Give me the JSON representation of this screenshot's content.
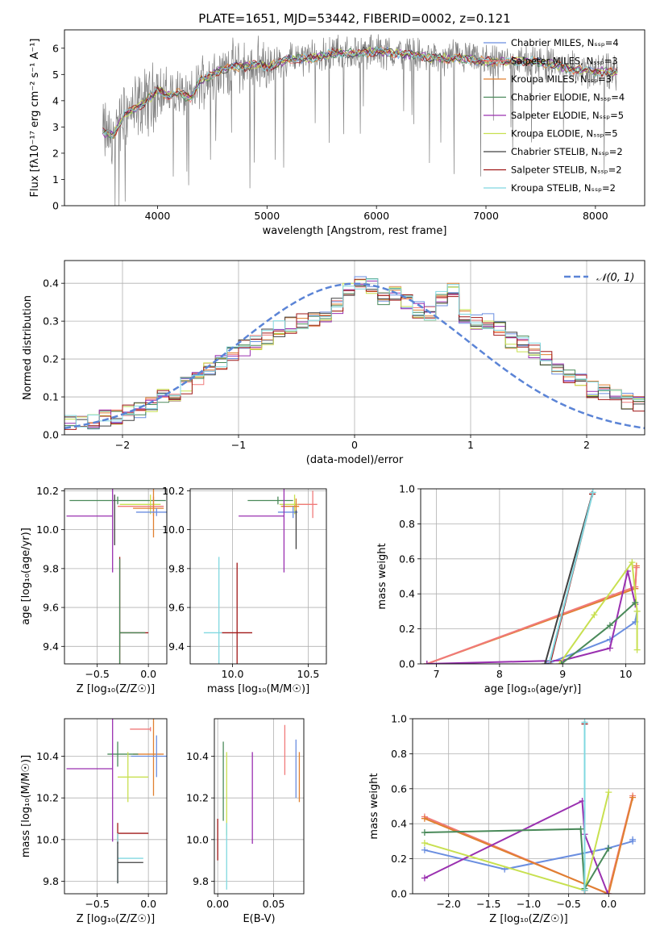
{
  "chart_data": [
    {
      "id": "spectrum",
      "type": "line",
      "title": "PLATE=1651, MJD=53442, FIBERID=0002, z=0.121",
      "xlabel": "wavelength [Angstrom, rest frame]",
      "ylabel": "Flux [fλ10⁻¹⁷ erg cm⁻² s⁻¹ A⁻¹]",
      "xlim": [
        3150,
        8450
      ],
      "ylim": [
        0,
        6.7
      ],
      "xticks": [
        4000,
        5000,
        6000,
        7000,
        8000
      ],
      "yticks": [
        0,
        1,
        2,
        3,
        4,
        5,
        6
      ],
      "grid": false,
      "legend_position": "top-right",
      "data_continuum": {
        "x": [
          3500,
          3600,
          3700,
          3800,
          3900,
          4000,
          4100,
          4200,
          4300,
          4400,
          4500,
          4600,
          4700,
          4800,
          4900,
          5000,
          5200,
          5400,
          5600,
          5800,
          6000,
          6200,
          6400,
          6600,
          6800,
          7000,
          7200,
          7400,
          7600,
          7800,
          8000,
          8200
        ],
        "y": [
          2.8,
          2.7,
          3.5,
          3.7,
          4.0,
          4.4,
          4.2,
          4.3,
          4.1,
          4.8,
          5.0,
          5.2,
          5.3,
          5.3,
          5.4,
          5.3,
          5.6,
          5.6,
          5.8,
          5.8,
          5.9,
          5.8,
          5.7,
          5.6,
          5.6,
          5.5,
          5.5,
          5.5,
          5.4,
          5.2,
          5.1,
          5.1
        ]
      },
      "models": [
        {
          "name": "Chabrier MILES, N$_{SSP}$=4",
          "color": "#6a8ee0"
        },
        {
          "name": "Salpeter MILES, N$_{SSP}$=3",
          "color": "#f07a7a"
        },
        {
          "name": "Kroupa MILES, N$_{SSP}$=3",
          "color": "#e08030"
        },
        {
          "name": "Chabrier ELODIE, N$_{SSP}$=4",
          "color": "#4a8a5a"
        },
        {
          "name": "Salpeter ELODIE, N$_{SSP}$=5",
          "color": "#9a30b0"
        },
        {
          "name": "Kroupa ELODIE, N$_{SSP}$=5",
          "color": "#c8e050"
        },
        {
          "name": "Chabrier STELIB, N$_{SSP}$=2",
          "color": "#404040"
        },
        {
          "name": "Salpeter STELIB, N$_{SSP}$=2",
          "color": "#a01818"
        },
        {
          "name": "Kroupa STELIB, N$_{SSP}$=2",
          "color": "#80d8e0"
        }
      ]
    },
    {
      "id": "residuals",
      "type": "histogram",
      "xlabel": "(data-model)/error",
      "ylabel": "Normed distribution",
      "xlim": [
        -2.5,
        2.5
      ],
      "ylim": [
        0,
        0.46
      ],
      "xticks": [
        -2,
        -1,
        0,
        1,
        2
      ],
      "yticks": [
        0.0,
        0.1,
        0.2,
        0.3,
        0.4
      ],
      "grid": true,
      "legend": [
        "𝒩(0, 1)"
      ],
      "legend_position": "top-right",
      "gaussian": {
        "mu": 0,
        "sigma": 1,
        "color": "#5b84d6"
      },
      "bin_edges_start": -2.5,
      "bin_width": 0.1,
      "base_heights": [
        0.03,
        0.035,
        0.035,
        0.045,
        0.05,
        0.06,
        0.065,
        0.08,
        0.1,
        0.11,
        0.13,
        0.15,
        0.17,
        0.19,
        0.21,
        0.23,
        0.24,
        0.26,
        0.28,
        0.29,
        0.3,
        0.3,
        0.32,
        0.34,
        0.38,
        0.4,
        0.39,
        0.36,
        0.37,
        0.35,
        0.33,
        0.32,
        0.36,
        0.38,
        0.31,
        0.3,
        0.3,
        0.28,
        0.25,
        0.24,
        0.22,
        0.2,
        0.17,
        0.15,
        0.14,
        0.12,
        0.11,
        0.1,
        0.09,
        0.08,
        0.07,
        0.06,
        0.05,
        0.04
      ],
      "series_colors": [
        "#6a8ee0",
        "#f07a7a",
        "#e08030",
        "#4a8a5a",
        "#9a30b0",
        "#c8e050",
        "#404040",
        "#a01818",
        "#80d8e0"
      ]
    },
    {
      "id": "age-vs-Z",
      "type": "errorbar",
      "xlabel": "Z [log₁₀(Z/Z☉)]",
      "ylabel": "age  [log₁₀(age/yr)]",
      "xlim": [
        -0.82,
        0.18
      ],
      "ylim": [
        9.31,
        10.21
      ],
      "xticks": [
        -0.5,
        0.0
      ],
      "yticks": [
        9.4,
        9.6,
        9.8,
        10.0,
        10.2
      ],
      "grid": true,
      "points": [
        {
          "x": -0.3,
          "y": 10.15,
          "xerr": [
            0.47,
            0.47
          ],
          "yerr": 0.02,
          "color": "#4a8a5a"
        },
        {
          "x": 0.02,
          "y": 10.13,
          "xerr": [
            0.3,
            0.1
          ],
          "yerr": 0.05,
          "color": "#c8e050"
        },
        {
          "x": 0.05,
          "y": 10.12,
          "xerr": [
            0.35,
            0.1
          ],
          "yerr": 0.05,
          "color": "#f07a7a"
        },
        {
          "x": 0.05,
          "y": 10.11,
          "xerr": [
            0.2,
            0.1
          ],
          "yerr": 0.15,
          "color": "#e08030"
        },
        {
          "x": 0.08,
          "y": 10.09,
          "xerr": [
            0.2,
            0.1
          ],
          "yerr": 0.02,
          "color": "#6a8ee0"
        },
        {
          "x": -0.35,
          "y": 10.07,
          "xerr": [
            0.45,
            0.0
          ],
          "yerr": 0.29,
          "color": "#9a30b0"
        },
        {
          "x": -0.33,
          "y": 10.05,
          "xerr": [
            0.0,
            0.0
          ],
          "yerr": 0.13,
          "color": "#404040"
        },
        {
          "x": -0.28,
          "y": 9.47,
          "xerr": [
            0.0,
            0.28
          ],
          "yerr": 0.39,
          "color": "#a01818"
        },
        {
          "x": -0.28,
          "y": 9.47,
          "xerr": [
            0.0,
            0.25
          ],
          "yerr": 0.38,
          "color": "#4a8a5a"
        }
      ]
    },
    {
      "id": "age-vs-mass",
      "type": "errorbar",
      "xlabel": "mass [log₁₀(M/M☉)]",
      "ylabel": "",
      "xlim": [
        9.72,
        10.62
      ],
      "ylim": [
        9.31,
        10.21
      ],
      "xticks": [
        10.0,
        10.5
      ],
      "yticks": [
        9.4,
        9.6,
        9.8,
        10.0,
        10.2
      ],
      "grid": true,
      "points": [
        {
          "x": 10.3,
          "y": 10.15,
          "xerr": [
            0.2,
            0.1
          ],
          "yerr": 0.02,
          "color": "#4a8a5a"
        },
        {
          "x": 10.41,
          "y": 10.13,
          "xerr": [
            0.1,
            0.1
          ],
          "yerr": 0.05,
          "color": "#c8e050"
        },
        {
          "x": 10.53,
          "y": 10.13,
          "xerr": [
            0.1,
            0.03
          ],
          "yerr": 0.07,
          "color": "#f07a7a"
        },
        {
          "x": 10.42,
          "y": 10.12,
          "xerr": [
            0.1,
            0.02
          ],
          "yerr": 0.04,
          "color": "#e08030"
        },
        {
          "x": 10.4,
          "y": 10.09,
          "xerr": [
            0.1,
            0.03
          ],
          "yerr": 0.03,
          "color": "#6a8ee0"
        },
        {
          "x": 10.34,
          "y": 10.07,
          "xerr": [
            0.3,
            0.0
          ],
          "yerr": 0.29,
          "color": "#9a30b0"
        },
        {
          "x": 10.42,
          "y": 10.0,
          "xerr": [
            0.0,
            0.0
          ],
          "yerr": 0.1,
          "color": "#404040"
        },
        {
          "x": 10.03,
          "y": 9.47,
          "xerr": [
            0.1,
            0.1
          ],
          "yerr": 0.36,
          "color": "#a01818"
        },
        {
          "x": 9.91,
          "y": 9.47,
          "xerr": [
            0.1,
            0.02
          ],
          "yerr": 0.39,
          "color": "#80d8e0"
        }
      ]
    },
    {
      "id": "weight-vs-age",
      "type": "line",
      "xlabel": "age  [log₁₀(age/yr)]",
      "ylabel": "mass weight",
      "xlim": [
        6.75,
        10.3
      ],
      "ylim": [
        0,
        1
      ],
      "xticks": [
        7,
        8,
        9,
        10
      ],
      "yticks": [
        0.0,
        0.2,
        0.4,
        0.6,
        0.8,
        1.0
      ],
      "grid": true,
      "series": [
        {
          "color": "#6a8ee0",
          "x": [
            8.75,
            9.75,
            10.15,
            10.18
          ],
          "y": [
            0.0,
            0.14,
            0.24,
            0.3
          ]
        },
        {
          "color": "#e08030",
          "x": [
            6.85,
            10.15,
            10.17
          ],
          "y": [
            0.0,
            0.43,
            0.56
          ]
        },
        {
          "color": "#f07a7a",
          "x": [
            6.85,
            10.15,
            10.17
          ],
          "y": [
            0.0,
            0.44,
            0.55
          ]
        },
        {
          "color": "#9a30b0",
          "x": [
            6.85,
            9.0,
            9.75,
            10.03,
            10.15
          ],
          "y": [
            0.0,
            0.02,
            0.09,
            0.53,
            0.34
          ]
        },
        {
          "color": "#c8e050",
          "x": [
            8.95,
            9.5,
            10.1,
            10.18,
            10.18
          ],
          "y": [
            0.0,
            0.28,
            0.58,
            0.3,
            0.08
          ]
        },
        {
          "color": "#4a8a5a",
          "x": [
            8.98,
            9.75,
            10.15
          ],
          "y": [
            0.0,
            0.22,
            0.35
          ]
        },
        {
          "color": "#404040",
          "x": [
            8.72,
            9.47
          ],
          "y": [
            0.0,
            0.97
          ]
        },
        {
          "color": "#a01818",
          "x": [
            8.8,
            9.47
          ],
          "y": [
            0.0,
            0.97
          ]
        },
        {
          "color": "#80d8e0",
          "x": [
            8.8,
            9.48
          ],
          "y": [
            0.02,
            0.98
          ]
        }
      ]
    },
    {
      "id": "mass-vs-Z",
      "type": "errorbar",
      "xlabel": "Z [log₁₀(Z/Z☉)]",
      "ylabel": "mass [log₁₀(M/M☉)]",
      "xlim": [
        -0.82,
        0.18
      ],
      "ylim": [
        9.74,
        10.58
      ],
      "xticks": [
        -0.5,
        0.0
      ],
      "yticks": [
        9.8,
        10.0,
        10.2,
        10.4
      ],
      "grid": true,
      "points": [
        {
          "x": 0.02,
          "y": 10.53,
          "xerr": [
            0.2,
            0.0
          ],
          "yerr": 0.01,
          "color": "#f07a7a"
        },
        {
          "x": 0.05,
          "y": 10.41,
          "xerr": [
            0.2,
            0.1
          ],
          "yerr": 0.2,
          "color": "#e08030"
        },
        {
          "x": -0.3,
          "y": 10.41,
          "xerr": [
            0.1,
            0.2
          ],
          "yerr": 0.06,
          "color": "#4a8a5a"
        },
        {
          "x": 0.08,
          "y": 10.4,
          "xerr": [
            0.25,
            0.1
          ],
          "yerr": 0.1,
          "color": "#6a8ee0"
        },
        {
          "x": -0.35,
          "y": 10.34,
          "xerr": [
            0.45,
            0.0
          ],
          "yerr": 0.35,
          "color": "#9a30b0"
        },
        {
          "x": -0.2,
          "y": 10.3,
          "xerr": [
            0.1,
            0.2
          ],
          "yerr": 0.12,
          "color": "#c8e050"
        },
        {
          "x": -0.3,
          "y": 10.03,
          "xerr": [
            0.0,
            0.3
          ],
          "yerr": 0.05,
          "color": "#a01818"
        },
        {
          "x": -0.3,
          "y": 9.91,
          "xerr": [
            0.0,
            0.25
          ],
          "yerr": 0.12,
          "color": "#80d8e0"
        },
        {
          "x": -0.3,
          "y": 9.89,
          "xerr": [
            0.0,
            0.25
          ],
          "yerr": 0.1,
          "color": "#404040"
        }
      ]
    },
    {
      "id": "mass-vs-EBV",
      "type": "errorbar",
      "xlabel": "E(B-V)",
      "ylabel": "",
      "xlim": [
        -0.003,
        0.077
      ],
      "ylim": [
        9.74,
        10.58
      ],
      "xticks": [
        0.0,
        0.05
      ],
      "xticklabels": [
        "0.00",
        "0.05"
      ],
      "yticks": [
        9.8,
        10.0,
        10.2,
        10.4
      ],
      "grid": true,
      "points": [
        {
          "x": 0.0,
          "y": 10.0,
          "yerr": 0.1,
          "color": "#a01818"
        },
        {
          "x": 0.005,
          "y": 10.28,
          "yerr": 0.19,
          "color": "#4a8a5a"
        },
        {
          "x": 0.008,
          "y": 10.22,
          "yerr": 0.2,
          "color": "#c8e050"
        },
        {
          "x": 0.008,
          "y": 9.92,
          "yerr": 0.16,
          "color": "#80d8e0"
        },
        {
          "x": 0.031,
          "y": 10.2,
          "yerr": 0.22,
          "color": "#9a30b0"
        },
        {
          "x": 0.06,
          "y": 10.43,
          "yerr": 0.12,
          "color": "#f07a7a"
        },
        {
          "x": 0.07,
          "y": 10.34,
          "yerr": 0.14,
          "color": "#6a8ee0"
        },
        {
          "x": 0.073,
          "y": 10.3,
          "yerr": 0.12,
          "color": "#e08030"
        }
      ]
    },
    {
      "id": "weight-vs-Z",
      "type": "line",
      "xlabel": "Z [log₁₀(Z/Z☉)]",
      "ylabel": "mass weight",
      "xlim": [
        -2.45,
        0.45
      ],
      "ylim": [
        0,
        1
      ],
      "xticks": [
        -2.0,
        -1.5,
        -1.0,
        -0.5,
        0.0
      ],
      "yticks": [
        0.0,
        0.2,
        0.4,
        0.6,
        0.8,
        1.0
      ],
      "grid": true,
      "series": [
        {
          "color": "#6a8ee0",
          "x": [
            -2.3,
            -1.3,
            -0.01,
            0.3,
            0.3
          ],
          "y": [
            0.25,
            0.14,
            0.26,
            0.3,
            0.31
          ]
        },
        {
          "color": "#f07a7a",
          "x": [
            -2.3,
            -0.01,
            0.3
          ],
          "y": [
            0.44,
            0.0,
            0.56
          ]
        },
        {
          "color": "#e08030",
          "x": [
            -2.3,
            0.0,
            0.3
          ],
          "y": [
            0.43,
            0.0,
            0.55
          ]
        },
        {
          "color": "#9a30b0",
          "x": [
            -2.3,
            -0.33,
            -0.3,
            -0.01
          ],
          "y": [
            0.09,
            0.53,
            0.34,
            0.0
          ]
        },
        {
          "color": "#c8e050",
          "x": [
            -2.3,
            -0.3,
            0.0
          ],
          "y": [
            0.29,
            0.02,
            0.58
          ]
        },
        {
          "color": "#4a8a5a",
          "x": [
            -2.3,
            -0.35,
            -0.3,
            0.0
          ],
          "y": [
            0.35,
            0.37,
            0.03,
            0.26
          ]
        },
        {
          "color": "#404040",
          "x": [
            -0.3,
            -0.3
          ],
          "y": [
            0.02,
            0.97
          ]
        },
        {
          "color": "#a01818",
          "x": [
            -0.3,
            -0.3
          ],
          "y": [
            0.02,
            0.97
          ]
        },
        {
          "color": "#80d8e0",
          "x": [
            -0.3,
            -0.3
          ],
          "y": [
            0.02,
            0.98
          ]
        }
      ]
    }
  ]
}
